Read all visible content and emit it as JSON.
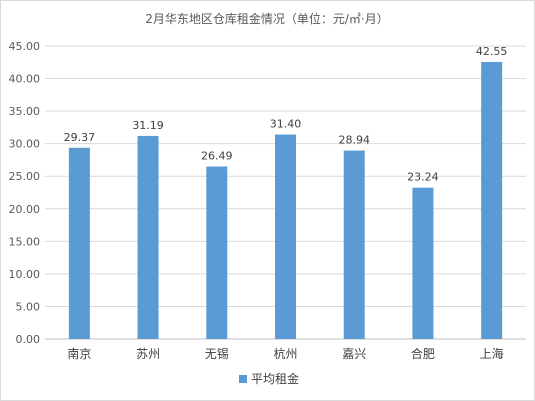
{
  "chart_data": {
    "type": "bar",
    "title": "2月华东地区仓库租金情况（单位：元/㎡·月）",
    "categories": [
      "南京",
      "苏州",
      "无锡",
      "杭州",
      "嘉兴",
      "合肥",
      "上海"
    ],
    "series": [
      {
        "name": "平均租金",
        "values": [
          29.37,
          31.19,
          26.49,
          31.4,
          28.94,
          23.24,
          42.55
        ],
        "labels": [
          "29.37",
          "31.19",
          "26.49",
          "31.40",
          "28.94",
          "23.24",
          "42.55"
        ],
        "color": "#5b9bd5"
      }
    ],
    "ylim": [
      0,
      45
    ],
    "yticks": [
      "0.00",
      "5.00",
      "10.00",
      "15.00",
      "20.00",
      "25.00",
      "30.00",
      "35.00",
      "40.00",
      "45.00"
    ],
    "grid": true,
    "legend_position": "bottom",
    "gridline_color": "#d9d9d9",
    "axis_color": "#bfbfbf"
  }
}
